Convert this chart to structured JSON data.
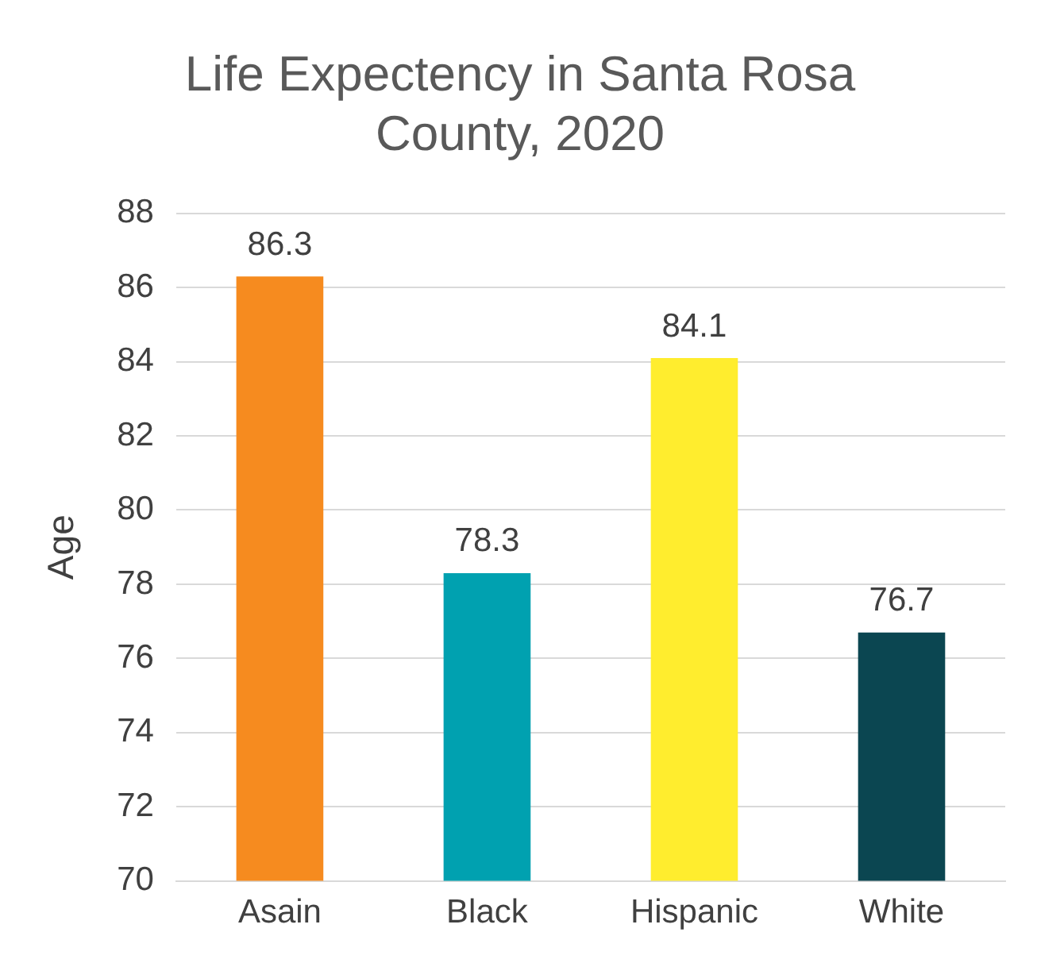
{
  "chart_data": {
    "type": "bar",
    "title": [
      "Life Expectency in Santa Rosa",
      "County, 2020"
    ],
    "ylabel": "Age",
    "categories": [
      "Asain",
      "Black",
      "Hispanic",
      "White"
    ],
    "values": [
      86.3,
      78.3,
      84.1,
      76.7
    ],
    "colors": [
      "#f68b1f",
      "#00a1b0",
      "#ffed2e",
      "#0b4651"
    ],
    "ylim": [
      70,
      88
    ],
    "yticks": [
      70,
      72,
      74,
      76,
      78,
      80,
      82,
      84,
      86,
      88
    ],
    "grid": "y",
    "data_labels": true,
    "legend": false
  }
}
